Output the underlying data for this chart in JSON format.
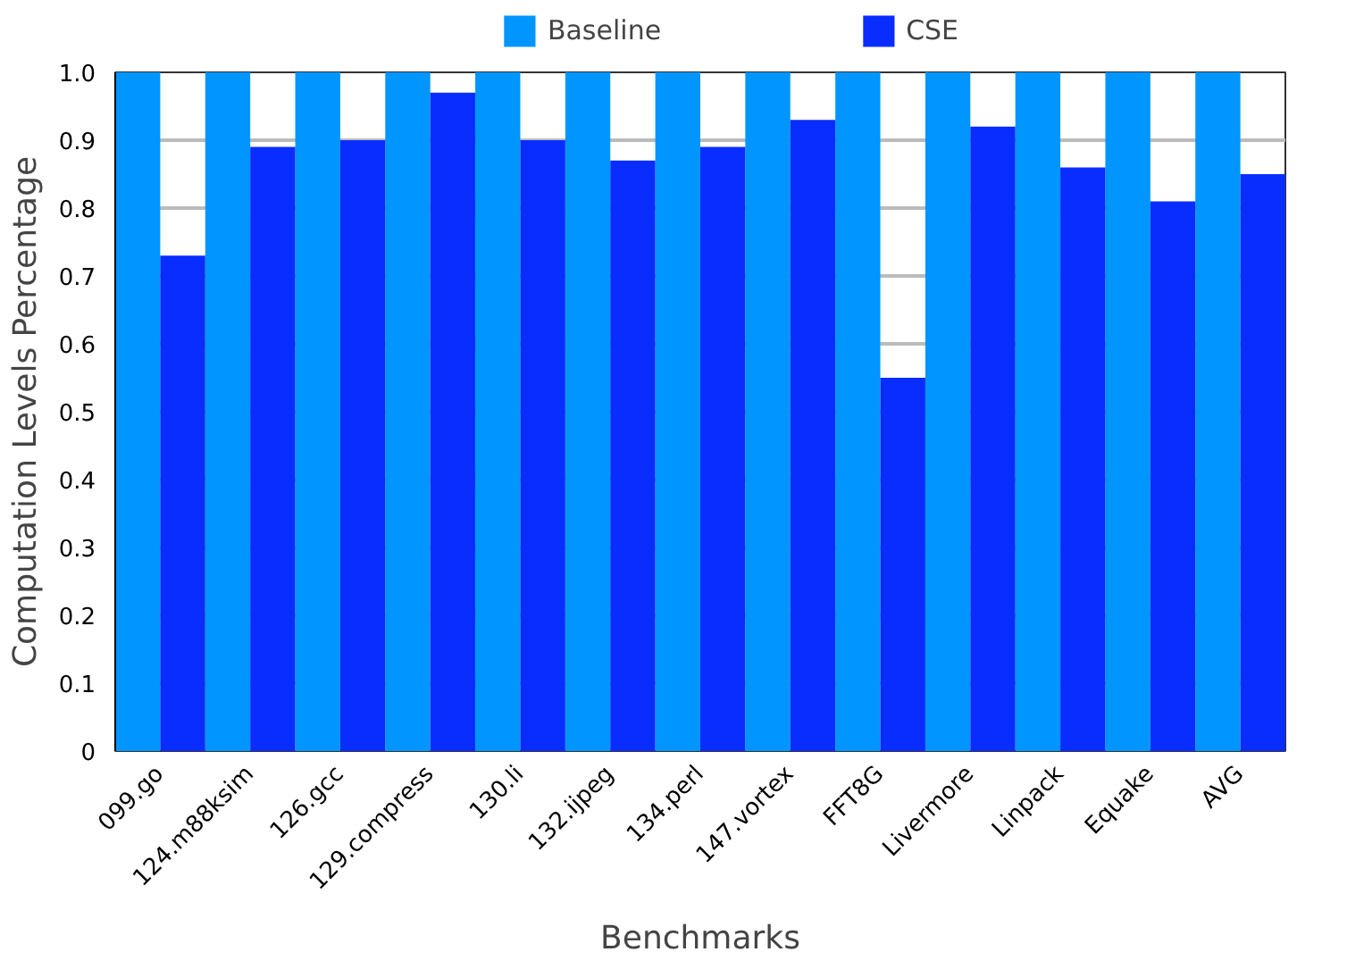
{
  "chart_data": {
    "type": "bar",
    "xlabel": "Benchmarks",
    "ylabel": "Computation Levels Percentage",
    "categories": [
      "099.go",
      "124.m88ksim",
      "126.gcc",
      "129.compress",
      "130.li",
      "132.ijpeg",
      "134.perl",
      "147.vortex",
      "FFT8G",
      "Livermore",
      "Linpack",
      "Equake",
      "AVG"
    ],
    "series": [
      {
        "name": "Baseline",
        "color": "#0095ff",
        "values": [
          1,
          1,
          1,
          1,
          1,
          1,
          1,
          1,
          1,
          1,
          1,
          1,
          1
        ]
      },
      {
        "name": "CSE",
        "color": "#0a2dff",
        "values": [
          0.73,
          0.89,
          0.9,
          0.97,
          0.9,
          0.87,
          0.89,
          0.93,
          0.55,
          0.92,
          0.86,
          0.81,
          0.85
        ]
      }
    ],
    "ylim": [
      0,
      1
    ],
    "yticks": [
      0,
      {
        "value": 0.1,
        "label": "0.1"
      },
      {
        "value": 0.2,
        "label": "0.2"
      },
      {
        "value": 0.3,
        "label": "0.3"
      },
      {
        "value": 0.4,
        "label": "0.4"
      },
      {
        "value": 0.5,
        "label": "0.5"
      },
      {
        "value": 0.6,
        "label": "0.6"
      },
      {
        "value": 0.7,
        "label": "0.7"
      },
      {
        "value": 0.8,
        "label": "0.8"
      },
      {
        "value": 0.9,
        "label": "0.9"
      },
      {
        "value": 1,
        "label": "1.0"
      }
    ],
    "grid": "y",
    "legend": "top"
  }
}
